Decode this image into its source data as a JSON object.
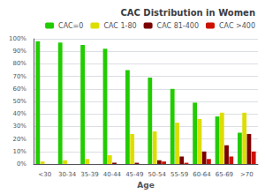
{
  "chart_data": {
    "type": "bar",
    "title": "CAC Distribution in Women",
    "xlabel": "Age",
    "categories": [
      "<30",
      "30-34",
      "35-39",
      "40-44",
      "45-49",
      "50-54",
      "55-59",
      "60-64",
      "65-69",
      ">70"
    ],
    "series": [
      {
        "name": "CAC=0",
        "color": "#22CC00",
        "values": [
          98,
          97,
          95,
          92,
          75,
          69,
          60,
          49,
          38,
          25
        ]
      },
      {
        "name": "CAC 1-80",
        "color": "#DDDD00",
        "values": [
          2,
          3,
          4,
          7,
          24,
          26,
          33,
          36,
          41,
          41
        ]
      },
      {
        "name": "CAC 81-400",
        "color": "#7B0000",
        "values": [
          0,
          0,
          0,
          1,
          1,
          3,
          6,
          10,
          15,
          24
        ]
      },
      {
        "name": "CAC >400",
        "color": "#CC1100",
        "values": [
          0,
          0,
          0,
          0,
          0,
          2,
          1,
          4,
          6,
          10
        ]
      }
    ],
    "ylim": [
      0,
      100
    ],
    "yticks": [
      {
        "value": 0,
        "label": "0%"
      },
      {
        "value": 10,
        "label": "10%"
      },
      {
        "value": 20,
        "label": "20%"
      },
      {
        "value": 30,
        "label": "30%"
      },
      {
        "value": 40,
        "label": "40%"
      },
      {
        "value": 50,
        "label": "50%"
      },
      {
        "value": 60,
        "label": "60%"
      },
      {
        "value": 70,
        "label": "70%"
      },
      {
        "value": 80,
        "label": "80%"
      },
      {
        "value": 90,
        "label": "90%"
      },
      {
        "value": 100,
        "label": "100%"
      }
    ],
    "grid": true,
    "legend": "upper right"
  }
}
